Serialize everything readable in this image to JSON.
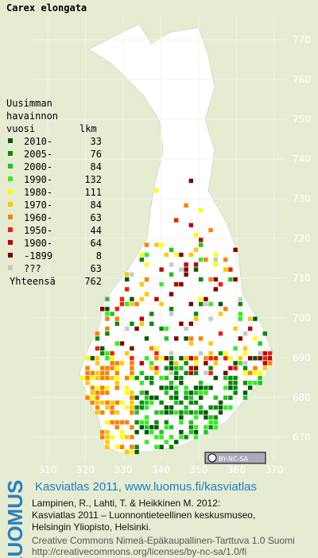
{
  "title": "Carex elongata",
  "legend": {
    "heading": [
      "Uusimman",
      "havainnon",
      "vuosi"
    ],
    "count_header": "lkm",
    "entries": [
      {
        "label": "2010-",
        "count": 33,
        "color": "#005a00"
      },
      {
        "label": "2005-",
        "count": 76,
        "color": "#0a8c0a"
      },
      {
        "label": "2000-",
        "count": 84,
        "color": "#22c322"
      },
      {
        "label": "1990-",
        "count": 132,
        "color": "#33ee22"
      },
      {
        "label": "1980-",
        "count": 111,
        "color": "#ffff00"
      },
      {
        "label": "1970-",
        "count": 84,
        "color": "#ffc800"
      },
      {
        "label": "1960-",
        "count": 63,
        "color": "#ff8000"
      },
      {
        "label": "1950-",
        "count": 44,
        "color": "#ee2200"
      },
      {
        "label": "1900-",
        "count": 64,
        "color": "#c00000"
      },
      {
        "label": "-1899",
        "count": 8,
        "color": "#800000"
      },
      {
        "label": "???",
        "count": 63,
        "color": "#c8c8c8"
      }
    ],
    "total_label": "Yhteensä",
    "total": 762
  },
  "grid": {
    "north": [
      770,
      760,
      750,
      740,
      730,
      720,
      710,
      700,
      690,
      680,
      670
    ],
    "east": [
      310,
      320,
      330,
      340,
      350,
      360,
      370
    ]
  },
  "badge": "BY-NC-SA",
  "footer": {
    "brand": "LUOMUS",
    "link": "Kasviatlas 2011, www.luomus.fi/kasviatlas",
    "citation": [
      "Lampinen, R., Lahti, T. & Heikkinen M. 2012:",
      "Kasviatlas 2011 – Luonnontieteellinen keskusmuseo,",
      "Helsingin Yliopisto, Helsinki."
    ],
    "license": [
      "Creative Commons Nimeä-Epäkaupallinen-Tarttuva 1.0 Suomi",
      "http://creativecommons.org/licenses/by-nc-sa/1.0/fi"
    ]
  }
}
